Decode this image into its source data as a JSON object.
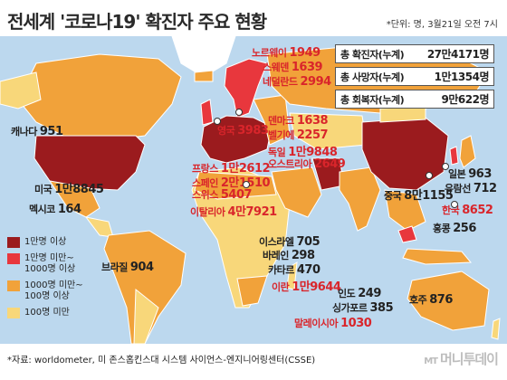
{
  "title": "전세계 '코로나19' 확진자 주요 현황",
  "unit_note": "*단위: 명, 3월21일 오전 7시",
  "stats": [
    {
      "label": "총 확진자(누계)",
      "value": "27만4171명"
    },
    {
      "label": "총 사망자(누계)",
      "value": "1만1354명"
    },
    {
      "label": "총 회복자(누계)",
      "value": "9만622명"
    }
  ],
  "countries": [
    {
      "name": "노르웨이",
      "value": "1949",
      "color": "red"
    },
    {
      "name": "스웨덴",
      "value": "1639",
      "color": "red"
    },
    {
      "name": "네덜란드",
      "value": "2994",
      "color": "red"
    },
    {
      "name": "영국",
      "value": "3983",
      "color": "red"
    },
    {
      "name": "덴마크",
      "value": "1638",
      "color": "red"
    },
    {
      "name": "벨기에",
      "value": "2257",
      "color": "red"
    },
    {
      "name": "독일",
      "value": "1만9848",
      "color": "red"
    },
    {
      "name": "오스트리아",
      "value": "2649",
      "color": "red"
    },
    {
      "name": "프랑스",
      "value": "1만2612",
      "color": "red"
    },
    {
      "name": "스페인",
      "value": "2만1510",
      "color": "red"
    },
    {
      "name": "스위스",
      "value": "5407",
      "color": "red"
    },
    {
      "name": "이탈리아",
      "value": "4만7921",
      "color": "red"
    },
    {
      "name": "캐나다",
      "value": "951",
      "color": "dark"
    },
    {
      "name": "미국",
      "value": "1만8845",
      "color": "dark"
    },
    {
      "name": "멕시코",
      "value": "164",
      "color": "dark"
    },
    {
      "name": "브라질",
      "value": "904",
      "color": "dark"
    },
    {
      "name": "이스라엘",
      "value": "705",
      "color": "dark"
    },
    {
      "name": "바레인",
      "value": "298",
      "color": "dark"
    },
    {
      "name": "카타르",
      "value": "470",
      "color": "dark"
    },
    {
      "name": "이란",
      "value": "1만9644",
      "color": "red"
    },
    {
      "name": "인도",
      "value": "249",
      "color": "dark"
    },
    {
      "name": "싱가포르",
      "value": "385",
      "color": "dark"
    },
    {
      "name": "말레이시아",
      "value": "1030",
      "color": "red"
    },
    {
      "name": "중국",
      "value": "8만1155",
      "color": "dark"
    },
    {
      "name": "한국",
      "value": "8652",
      "color": "red"
    },
    {
      "name": "일본",
      "value": "963",
      "color": "dark"
    },
    {
      "name": "유람선",
      "value": "712",
      "color": "dark"
    },
    {
      "name": "홍콩",
      "value": "256",
      "color": "dark"
    },
    {
      "name": "호주",
      "value": "876",
      "color": "dark"
    }
  ],
  "legend": [
    {
      "label": "1만명 이상",
      "color": "#9b1b1e"
    },
    {
      "label": "1만명 미만~\n1000명 이상",
      "color": "#e8373d"
    },
    {
      "label": "1000명 미만~\n100명 이상",
      "color": "#f1a23a"
    },
    {
      "label": "100명 미만",
      "color": "#f8d77a"
    }
  ],
  "source": "*자료: worldometer, 미 존스홉킨스대 시스템 사이언스-엔지니어링센터(CSSE)",
  "logo": {
    "mt": "MT",
    "name": "머니투데이"
  },
  "colors": {
    "ocean": "#bcd8ee",
    "land_base": "#f1a23a",
    "land_light": "#f8d77a",
    "land_none": "#ffffff"
  }
}
